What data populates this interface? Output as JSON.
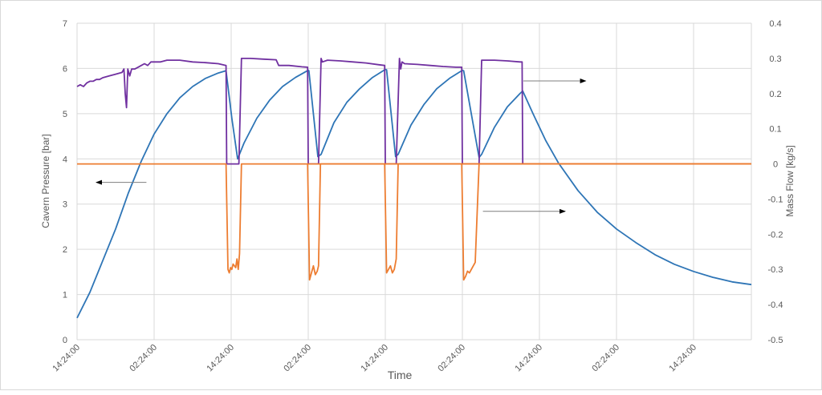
{
  "chart_data": {
    "type": "line",
    "xlabel": "Time",
    "ylabel_left": "Cavern Pressure [bar]",
    "ylabel_right": "Mass Flow [kg/s]",
    "x_ticks": [
      "14:24:00",
      "02:24:00",
      "14:24:00",
      "02:24:00",
      "14:24:00",
      "02:24:00",
      "14:24:00",
      "02:24:00",
      "14:24:00"
    ],
    "x_tick_hours": [
      0,
      12,
      24,
      36,
      48,
      60,
      72,
      84,
      96
    ],
    "xlim_hours": [
      0,
      105
    ],
    "ylim_left": [
      0,
      7
    ],
    "ylim_right": [
      -0.5,
      0.4
    ],
    "y_ticks_left": [
      "0",
      "1",
      "2",
      "3",
      "4",
      "5",
      "6",
      "7"
    ],
    "y_ticks_right": [
      "-0.5",
      "-0.4",
      "-0.3",
      "-0.2",
      "-0.1",
      "0",
      "0.1",
      "0.2",
      "0.3",
      "0.4"
    ],
    "grid": true,
    "series": [
      {
        "axis": "left",
        "color": "#2e75b6",
        "x": [
          0,
          2,
          4,
          6,
          8,
          10,
          12,
          14,
          16,
          18,
          20,
          22,
          23.2,
          24.1,
          25,
          26,
          28,
          30,
          32,
          34,
          36,
          36.1,
          37.5,
          38,
          40,
          42,
          44,
          46,
          48,
          48.2,
          49.6,
          50,
          52,
          54,
          56,
          58,
          60,
          60.2,
          62.6,
          63,
          65,
          67,
          69,
          69.4,
          71,
          73,
          75,
          78,
          81,
          84,
          87,
          90,
          93,
          96,
          99,
          102,
          105
        ],
        "y": [
          0.48,
          1.05,
          1.75,
          2.45,
          3.25,
          3.95,
          4.55,
          5.0,
          5.35,
          5.6,
          5.78,
          5.9,
          5.95,
          4.9,
          4.0,
          4.35,
          4.9,
          5.3,
          5.6,
          5.8,
          5.96,
          5.95,
          4.05,
          4.1,
          4.8,
          5.25,
          5.55,
          5.8,
          5.98,
          5.97,
          4.05,
          4.1,
          4.75,
          5.2,
          5.55,
          5.78,
          5.96,
          5.95,
          4.03,
          4.1,
          4.7,
          5.15,
          5.45,
          5.5,
          5.0,
          4.4,
          3.9,
          3.3,
          2.82,
          2.45,
          2.15,
          1.88,
          1.67,
          1.51,
          1.38,
          1.28,
          1.22
        ]
      },
      {
        "axis": "right",
        "color": "#7030a0",
        "x": [
          0,
          0.5,
          1,
          1.5,
          2,
          2.5,
          3,
          3.5,
          4,
          5,
          6,
          7,
          7.3,
          7.5,
          7.7,
          7.9,
          8.2,
          8.5,
          9,
          9.5,
          10,
          10.5,
          11,
          11.5,
          12,
          13,
          14,
          16,
          18,
          20,
          22,
          23.2,
          23.3,
          25.2,
          25.6,
          26,
          27,
          29,
          31,
          31.4,
          33,
          35,
          35.9,
          36.0,
          37.6,
          38.0,
          38.2,
          39,
          41,
          43,
          45,
          47,
          47.9,
          48.0,
          49.7,
          50.2,
          50.4,
          50.6,
          51,
          53,
          55,
          57,
          59,
          59.9,
          60.0,
          62.6,
          63,
          65,
          67,
          69,
          69.3,
          69.4,
          71,
          105
        ],
        "y": [
          0.22,
          0.225,
          0.22,
          0.23,
          0.235,
          0.235,
          0.24,
          0.24,
          0.245,
          0.25,
          0.255,
          0.26,
          0.27,
          0.2,
          0.16,
          0.27,
          0.25,
          0.27,
          0.27,
          0.275,
          0.28,
          0.285,
          0.28,
          0.29,
          0.29,
          0.29,
          0.295,
          0.295,
          0.29,
          0.288,
          0.285,
          0.28,
          0,
          0,
          0.3,
          0.3,
          0.3,
          0.298,
          0.296,
          0.28,
          0.28,
          0.276,
          0.275,
          0,
          0,
          0.3,
          0.29,
          0.295,
          0.293,
          0.29,
          0.287,
          0.282,
          0.28,
          0,
          0,
          0.3,
          0.27,
          0.29,
          0.285,
          0.283,
          0.28,
          0.277,
          0.275,
          0.275,
          0,
          0,
          0.295,
          0.295,
          0.293,
          0.29,
          0.29,
          0,
          0,
          0
        ]
      },
      {
        "axis": "right",
        "color": "#ed7d31",
        "x": [
          0,
          23.2,
          23.5,
          23.7,
          23.9,
          24.1,
          24.3,
          24.5,
          24.7,
          24.9,
          25.1,
          25.3,
          25.6,
          105
        ],
        "y": [
          0,
          0,
          -0.3,
          -0.31,
          -0.295,
          -0.3,
          -0.285,
          -0.29,
          -0.295,
          -0.27,
          -0.3,
          -0.255,
          0,
          0
        ],
        "segments_note": ""
      },
      {
        "axis": "right",
        "color": "#ed7d31",
        "x": [
          35.9,
          36.2,
          36.5,
          36.8,
          37.1,
          37.4,
          37.6,
          37.9,
          105
        ],
        "y": [
          0,
          -0.33,
          -0.31,
          -0.29,
          -0.315,
          -0.305,
          -0.29,
          0,
          0
        ]
      },
      {
        "axis": "right",
        "color": "#ed7d31",
        "x": [
          47.9,
          48.2,
          48.5,
          48.8,
          49.1,
          49.4,
          49.7,
          50.0,
          105
        ],
        "y": [
          0,
          -0.31,
          -0.3,
          -0.29,
          -0.31,
          -0.3,
          -0.27,
          0,
          0
        ]
      },
      {
        "axis": "right",
        "color": "#ed7d31",
        "x": [
          59.9,
          60.2,
          60.5,
          60.8,
          61.1,
          61.4,
          61.7,
          62.0,
          62.6,
          105
        ],
        "y": [
          0,
          -0.33,
          -0.32,
          -0.305,
          -0.31,
          -0.3,
          -0.29,
          -0.28,
          0,
          0
        ]
      }
    ],
    "annotations": [
      {
        "type": "arrow",
        "from_hours": 10.8,
        "to_hours": 3.0,
        "y_left": 3.48,
        "direction": "left"
      },
      {
        "type": "arrow",
        "from_hours": 69.5,
        "to_hours": 79.2,
        "y_right": 0.236,
        "direction": "right"
      },
      {
        "type": "arrow",
        "from_hours": 63.2,
        "to_hours": 76.0,
        "y_right": -0.135,
        "direction": "right"
      }
    ]
  }
}
